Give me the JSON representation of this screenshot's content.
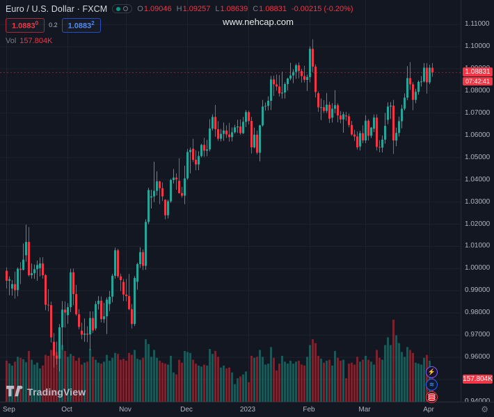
{
  "header": {
    "symbol": "Euro / U.S. Dollar · FXCM",
    "ohlc": {
      "o_label": "O",
      "o": "1.09046",
      "h_label": "H",
      "h": "1.09257",
      "l_label": "L",
      "l": "1.08639",
      "c_label": "C",
      "c": "1.08831",
      "change": "-0.00215 (-0.20%)"
    },
    "sell": {
      "price": "1.0883",
      "sup": "0"
    },
    "spread": "0.2",
    "buy": {
      "price": "1.0883",
      "sup": "2"
    },
    "vol_label": "Vol",
    "vol_value": "157.804K"
  },
  "watermark": "www.nehcap.com",
  "axis": {
    "last_price_tag": "1.08831",
    "countdown": "07:42:41",
    "volume_tag": "157.804K"
  },
  "footer": {
    "logo_text": "TradingView"
  },
  "colors": {
    "up": "#26a69a",
    "down": "#f23645",
    "bg": "#131722",
    "grid": "#1e222d",
    "axis_text": "#b2b5be",
    "buy_blue": "#2962ff"
  },
  "chart_data": {
    "type": "candlestick",
    "title": "Euro / U.S. Dollar · FXCM, daily",
    "last_price": 1.08831,
    "ylim": [
      0.94,
      1.121
    ],
    "y_ticks": [
      1.11,
      1.1,
      1.09,
      1.08,
      1.07,
      1.06,
      1.05,
      1.04,
      1.03,
      1.02,
      1.01,
      1.0,
      0.99,
      0.98,
      0.97,
      0.96,
      0.95,
      0.94
    ],
    "x_axis": [
      {
        "label": "Sep",
        "i": 0
      },
      {
        "label": "Oct",
        "i": 22
      },
      {
        "label": "Nov",
        "i": 43
      },
      {
        "label": "Dec",
        "i": 65
      },
      {
        "label": "2023",
        "i": 87
      },
      {
        "label": "Feb",
        "i": 109
      },
      {
        "label": "Mar",
        "i": 129
      },
      {
        "label": "Apr",
        "i": 152
      }
    ],
    "series_note": "candles are [open, high, low, close, volume_thousands], daily Sep 2022 - Apr 2023",
    "candles": [
      [
        0.999,
        1.0005,
        0.991,
        0.9945,
        210
      ],
      [
        0.9945,
        0.9965,
        0.988,
        0.9952,
        196
      ],
      [
        0.991,
        0.9948,
        0.9878,
        0.993,
        185
      ],
      [
        0.993,
        0.9986,
        0.9864,
        0.9903,
        205
      ],
      [
        0.9903,
        1.0005,
        0.9875,
        0.9999,
        230
      ],
      [
        0.9999,
        1.0029,
        0.993,
        0.9994,
        225
      ],
      [
        0.9994,
        1.0113,
        0.9992,
        1.004,
        218
      ],
      [
        1.006,
        1.0198,
        1.0031,
        1.012,
        202
      ],
      [
        1.012,
        1.0187,
        0.9964,
        0.997,
        260
      ],
      [
        0.997,
        1.0023,
        0.9955,
        0.9979,
        215
      ],
      [
        0.9979,
        1.0018,
        0.9954,
        0.9997,
        190
      ],
      [
        0.9997,
        1.0036,
        0.9945,
        1.0016,
        200
      ],
      [
        1.0002,
        1.005,
        0.9965,
        1.0023,
        170
      ],
      [
        1.0023,
        1.0051,
        0.9955,
        0.997,
        185
      ],
      [
        0.997,
        0.9975,
        0.9812,
        0.9837,
        240
      ],
      [
        0.9837,
        0.9907,
        0.9807,
        0.9835,
        235
      ],
      [
        0.9835,
        0.9851,
        0.9667,
        0.969,
        265
      ],
      [
        0.967,
        0.9709,
        0.9554,
        0.9608,
        285
      ],
      [
        0.9608,
        0.9671,
        0.9567,
        0.9594,
        255
      ],
      [
        0.9594,
        0.975,
        0.9536,
        0.9735,
        310
      ],
      [
        0.9735,
        0.9853,
        0.9634,
        0.9815,
        290
      ],
      [
        0.9815,
        0.9852,
        0.9734,
        0.9802,
        260
      ],
      [
        0.979,
        0.9844,
        0.9751,
        0.9826,
        230
      ],
      [
        0.9826,
        0.9999,
        0.9804,
        0.9983,
        245
      ],
      [
        0.9983,
        1.0,
        0.9835,
        0.9885,
        235
      ],
      [
        0.9885,
        0.9926,
        0.9787,
        0.9794,
        210
      ],
      [
        0.9794,
        0.9817,
        0.9726,
        0.9737,
        225
      ],
      [
        0.972,
        0.9756,
        0.9681,
        0.9702,
        190
      ],
      [
        0.9702,
        0.9775,
        0.967,
        0.9707,
        200
      ],
      [
        0.9707,
        0.974,
        0.9668,
        0.9703,
        205
      ],
      [
        0.9703,
        0.9807,
        0.9632,
        0.9777,
        270
      ],
      [
        0.9777,
        0.9807,
        0.971,
        0.9721,
        230
      ],
      [
        0.973,
        0.9853,
        0.9721,
        0.984,
        215
      ],
      [
        0.984,
        0.9876,
        0.9815,
        0.9855,
        200
      ],
      [
        0.9855,
        0.9874,
        0.9757,
        0.9772,
        195
      ],
      [
        0.9772,
        0.9846,
        0.9755,
        0.9785,
        205
      ],
      [
        0.9785,
        0.987,
        0.9705,
        0.986,
        240
      ],
      [
        0.984,
        0.9899,
        0.9808,
        0.9873,
        210
      ],
      [
        0.9873,
        0.9976,
        0.9848,
        0.9967,
        225
      ],
      [
        0.9967,
        1.0094,
        0.9955,
        1.0082,
        250
      ],
      [
        1.0082,
        1.0089,
        0.9957,
        0.9965,
        245
      ],
      [
        0.9965,
        0.9977,
        0.9899,
        0.9948,
        215
      ],
      [
        0.994,
        0.9953,
        0.9853,
        0.9883,
        220
      ],
      [
        0.9883,
        0.9953,
        0.9852,
        0.9876,
        210
      ],
      [
        0.9876,
        0.9976,
        0.9812,
        0.9817,
        250
      ],
      [
        0.9817,
        0.984,
        0.973,
        0.975,
        240
      ],
      [
        0.975,
        0.9966,
        0.9741,
        0.9957,
        265
      ],
      [
        0.994,
        1.0026,
        0.9905,
        1.002,
        220
      ],
      [
        1.002,
        1.0096,
        1.0003,
        1.0074,
        215
      ],
      [
        1.0074,
        1.0086,
        0.9993,
        1.0012,
        225
      ],
      [
        1.0012,
        1.0222,
        0.9994,
        1.021,
        320
      ],
      [
        1.021,
        1.0364,
        1.02,
        1.0354,
        295
      ],
      [
        1.032,
        1.0355,
        1.0271,
        1.0325,
        230
      ],
      [
        1.0325,
        1.0481,
        1.03,
        1.035,
        265
      ],
      [
        1.035,
        1.0438,
        1.033,
        1.0393,
        225
      ],
      [
        1.0393,
        1.0395,
        1.029,
        1.0362,
        210
      ],
      [
        1.0362,
        1.0388,
        1.0305,
        1.0325,
        200
      ],
      [
        1.031,
        1.0312,
        1.0222,
        1.024,
        195
      ],
      [
        1.024,
        1.031,
        1.0226,
        1.0303,
        190
      ],
      [
        1.0303,
        1.0405,
        1.0296,
        1.0399,
        235
      ],
      [
        1.0399,
        1.0448,
        1.0383,
        1.041,
        150
      ],
      [
        1.041,
        1.0429,
        1.0355,
        1.0402,
        140
      ],
      [
        1.0395,
        1.0497,
        1.0338,
        1.034,
        215
      ],
      [
        1.034,
        1.0368,
        1.0319,
        1.0328,
        200
      ],
      [
        1.0328,
        1.0463,
        1.029,
        1.0406,
        260
      ],
      [
        1.0406,
        1.0539,
        1.04,
        1.0525,
        255
      ],
      [
        1.0525,
        1.0545,
        1.0429,
        1.0535,
        250
      ],
      [
        1.054,
        1.0585,
        1.048,
        1.049,
        215
      ],
      [
        1.049,
        1.0533,
        1.0443,
        1.0469,
        195
      ],
      [
        1.0469,
        1.0529,
        1.0443,
        1.0507,
        185
      ],
      [
        1.0507,
        1.0562,
        1.0501,
        1.0557,
        180
      ],
      [
        1.0557,
        1.0589,
        1.0504,
        1.0531,
        190
      ],
      [
        1.0531,
        1.058,
        1.0506,
        1.0537,
        185
      ],
      [
        1.0537,
        1.0673,
        1.0528,
        1.0631,
        270
      ],
      [
        1.0631,
        1.0695,
        1.0622,
        1.0683,
        245
      ],
      [
        1.0683,
        1.0737,
        1.0594,
        1.0628,
        260
      ],
      [
        1.0628,
        1.0664,
        1.0575,
        1.0585,
        230
      ],
      [
        1.0585,
        1.0629,
        1.0573,
        1.0607,
        175
      ],
      [
        1.0607,
        1.0658,
        1.0575,
        1.0622,
        185
      ],
      [
        1.0622,
        1.0645,
        1.0588,
        1.0604,
        170
      ],
      [
        1.0604,
        1.0657,
        1.0572,
        1.0592,
        175
      ],
      [
        1.0592,
        1.0636,
        1.0573,
        1.0614,
        150
      ],
      [
        1.0614,
        1.0648,
        1.0608,
        1.0636,
        90
      ],
      [
        1.0636,
        1.067,
        1.0611,
        1.064,
        120
      ],
      [
        1.064,
        1.0672,
        1.0603,
        1.061,
        130
      ],
      [
        1.061,
        1.0683,
        1.0606,
        1.0661,
        140
      ],
      [
        1.0661,
        1.0714,
        1.0638,
        1.0705,
        155
      ],
      [
        1.0705,
        1.0711,
        1.0649,
        1.0665,
        100
      ],
      [
        1.0665,
        1.0683,
        1.0519,
        1.0546,
        235
      ],
      [
        1.0546,
        1.0635,
        1.0542,
        1.0603,
        225
      ],
      [
        1.0603,
        1.0621,
        1.0514,
        1.0522,
        230
      ],
      [
        1.0522,
        1.0648,
        1.0483,
        1.0645,
        265
      ],
      [
        1.0645,
        1.076,
        1.0639,
        1.073,
        230
      ],
      [
        1.073,
        1.0748,
        1.0711,
        1.0733,
        190
      ],
      [
        1.0733,
        1.0776,
        1.0713,
        1.0756,
        195
      ],
      [
        1.0756,
        1.0868,
        1.0714,
        1.0852,
        280
      ],
      [
        1.0852,
        1.0869,
        1.0778,
        1.083,
        225
      ],
      [
        1.083,
        1.0874,
        1.0802,
        1.082,
        160
      ],
      [
        1.082,
        1.0872,
        1.0775,
        1.0789,
        195
      ],
      [
        1.0789,
        1.0887,
        1.0766,
        1.0793,
        235
      ],
      [
        1.0793,
        1.084,
        1.0766,
        1.0831,
        205
      ],
      [
        1.0831,
        1.086,
        1.0802,
        1.0856,
        195
      ],
      [
        1.0856,
        1.0927,
        1.0848,
        1.087,
        210
      ],
      [
        1.087,
        1.0898,
        1.0835,
        1.0886,
        195
      ],
      [
        1.0886,
        1.0923,
        1.0855,
        1.0916,
        205
      ],
      [
        1.0916,
        1.0929,
        1.0857,
        1.089,
        210
      ],
      [
        1.089,
        1.09,
        1.0838,
        1.0867,
        190
      ],
      [
        1.0867,
        1.0913,
        1.0838,
        1.085,
        185
      ],
      [
        1.085,
        1.0874,
        1.08,
        1.0863,
        230
      ],
      [
        1.0863,
        1.1001,
        1.0839,
        1.099,
        290
      ],
      [
        1.099,
        1.1033,
        1.0885,
        1.091,
        320
      ],
      [
        1.091,
        1.092,
        1.0771,
        1.0795,
        300
      ],
      [
        1.079,
        1.0798,
        1.0706,
        1.0726,
        235
      ],
      [
        1.0726,
        1.0766,
        1.0669,
        1.0727,
        220
      ],
      [
        1.0727,
        1.0759,
        1.0701,
        1.071,
        200
      ],
      [
        1.071,
        1.0791,
        1.0701,
        1.0738,
        210
      ],
      [
        1.0738,
        1.0752,
        1.0656,
        1.0675,
        215
      ],
      [
        1.068,
        1.0745,
        1.0658,
        1.072,
        185
      ],
      [
        1.072,
        1.0804,
        1.07,
        1.0736,
        260
      ],
      [
        1.0736,
        1.0744,
        1.0659,
        1.069,
        225
      ],
      [
        1.069,
        1.071,
        1.0655,
        1.0672,
        210
      ],
      [
        1.0672,
        1.0706,
        1.0612,
        1.0695,
        215
      ],
      [
        1.069,
        1.0706,
        1.0666,
        1.0686,
        120
      ],
      [
        1.0686,
        1.0698,
        1.0636,
        1.0647,
        195
      ],
      [
        1.0647,
        1.0665,
        1.0598,
        1.0604,
        200
      ],
      [
        1.0604,
        1.0625,
        1.0575,
        1.0595,
        190
      ],
      [
        1.0595,
        1.0618,
        1.0536,
        1.0546,
        230
      ],
      [
        1.055,
        1.0621,
        1.0532,
        1.061,
        205
      ],
      [
        1.061,
        1.0645,
        1.0565,
        1.0577,
        215
      ],
      [
        1.0577,
        1.0691,
        1.0565,
        1.0666,
        235
      ],
      [
        1.0666,
        1.0673,
        1.0577,
        1.0598,
        215
      ],
      [
        1.0598,
        1.0638,
        1.0588,
        1.0635,
        205
      ],
      [
        1.063,
        1.0694,
        1.0615,
        1.068,
        190
      ],
      [
        1.068,
        1.0695,
        1.0532,
        1.0548,
        265
      ],
      [
        1.0548,
        1.0578,
        1.0524,
        1.0545,
        225
      ],
      [
        1.0545,
        1.0599,
        1.0523,
        1.0581,
        215
      ],
      [
        1.0581,
        1.0701,
        1.0563,
        1.0643,
        290
      ],
      [
        1.067,
        1.0749,
        1.065,
        1.073,
        330
      ],
      [
        1.073,
        1.075,
        1.0674,
        1.0734,
        290
      ],
      [
        1.0734,
        1.076,
        1.0516,
        1.0577,
        420
      ],
      [
        1.0577,
        1.0635,
        1.0551,
        1.0611,
        340
      ],
      [
        1.0611,
        1.0685,
        1.0595,
        1.0664,
        300
      ],
      [
        1.0664,
        1.0738,
        1.0632,
        1.072,
        255
      ],
      [
        1.072,
        1.0789,
        1.0712,
        1.077,
        230
      ],
      [
        1.077,
        1.0912,
        1.0758,
        1.0858,
        280
      ],
      [
        1.0858,
        1.093,
        1.0805,
        1.083,
        265
      ],
      [
        1.083,
        1.084,
        1.0713,
        1.076,
        250
      ],
      [
        1.076,
        1.081,
        1.0745,
        1.0796,
        200
      ],
      [
        1.0796,
        1.0848,
        1.0783,
        1.0841,
        195
      ],
      [
        1.0841,
        1.0867,
        1.082,
        1.0843,
        190
      ],
      [
        1.0843,
        1.0926,
        1.0838,
        1.0905,
        225
      ],
      [
        1.0905,
        1.0926,
        1.0788,
        1.0839,
        240
      ],
      [
        1.0839,
        1.0918,
        1.0831,
        1.0905,
        210
      ],
      [
        1.09046,
        1.09257,
        1.08639,
        1.08831,
        157.8
      ]
    ]
  }
}
